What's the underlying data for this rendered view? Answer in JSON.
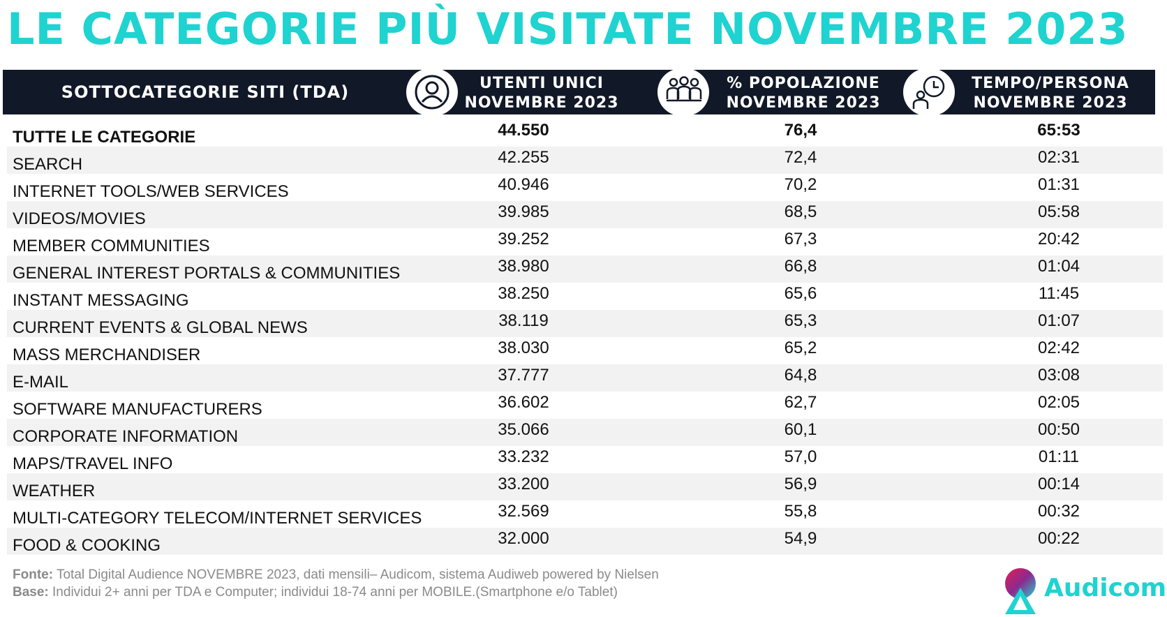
{
  "title": "LE CATEGORIE PIÙ VISITATE NOVEMBRE 2023",
  "header": {
    "col1": "SOTTOCATEGORIE SITI  (TDA)",
    "col2_line1": "UTENTI UNICI",
    "col2_line2": "NOVEMBRE 2023",
    "col3_line1": "% POPOLAZIONE",
    "col3_line2": "NOVEMBRE 2023",
    "col4_line1": "TEMPO/PERSONA",
    "col4_line2": "NOVEMBRE 2023"
  },
  "rows": [
    {
      "name": "TUTTE LE CATEGORIE",
      "utenti": "44.550",
      "popolazione": "76,4",
      "tempo": "65:53"
    },
    {
      "name": "SEARCH",
      "utenti": "42.255",
      "popolazione": "72,4",
      "tempo": "02:31"
    },
    {
      "name": "INTERNET TOOLS/WEB SERVICES",
      "utenti": "40.946",
      "popolazione": "70,2",
      "tempo": "01:31"
    },
    {
      "name": "VIDEOS/MOVIES",
      "utenti": "39.985",
      "popolazione": "68,5",
      "tempo": "05:58"
    },
    {
      "name": "MEMBER COMMUNITIES",
      "utenti": "39.252",
      "popolazione": "67,3",
      "tempo": "20:42"
    },
    {
      "name": "GENERAL INTEREST PORTALS & COMMUNITIES",
      "utenti": "38.980",
      "popolazione": "66,8",
      "tempo": "01:04"
    },
    {
      "name": "INSTANT MESSAGING",
      "utenti": "38.250",
      "popolazione": "65,6",
      "tempo": "11:45"
    },
    {
      "name": "CURRENT EVENTS & GLOBAL NEWS",
      "utenti": "38.119",
      "popolazione": "65,3",
      "tempo": "01:07"
    },
    {
      "name": "MASS MERCHANDISER",
      "utenti": "38.030",
      "popolazione": "65,2",
      "tempo": "02:42"
    },
    {
      "name": "E-MAIL",
      "utenti": "37.777",
      "popolazione": "64,8",
      "tempo": "03:08"
    },
    {
      "name": "SOFTWARE MANUFACTURERS",
      "utenti": "36.602",
      "popolazione": "62,7",
      "tempo": "02:05"
    },
    {
      "name": "CORPORATE INFORMATION",
      "utenti": "35.066",
      "popolazione": "60,1",
      "tempo": "00:50"
    },
    {
      "name": "MAPS/TRAVEL INFO",
      "utenti": "33.232",
      "popolazione": "57,0",
      "tempo": "01:11"
    },
    {
      "name": "WEATHER",
      "utenti": "33.200",
      "popolazione": "56,9",
      "tempo": "00:14"
    },
    {
      "name": "MULTI-CATEGORY TELECOM/INTERNET SERVICES",
      "utenti": "32.569",
      "popolazione": "55,8",
      "tempo": "00:32"
    },
    {
      "name": "FOOD & COOKING",
      "utenti": "32.000",
      "popolazione": "54,9",
      "tempo": "00:22"
    }
  ],
  "footer": {
    "fonte_label": "Fonte:",
    "fonte_text": " Total Digital Audience NOVEMBRE 2023, dati mensili– Audicom, sistema Audiweb powered by Nielsen",
    "base_label": "Base:",
    "base_text": "  Individui 2+ anni per TDA e Computer; individui 18-74 anni per MOBILE.(Smartphone e/o Tablet)"
  },
  "logo": {
    "text": "Audicom"
  },
  "colors": {
    "accent": "#1ed3d0",
    "header_bg": "#111827",
    "alt_row": "#f2f2f2",
    "footer_text": "#8a8a8a"
  },
  "icons": [
    "user-icon",
    "group-icon",
    "person-clock-icon",
    "audicom-logo-icon"
  ]
}
